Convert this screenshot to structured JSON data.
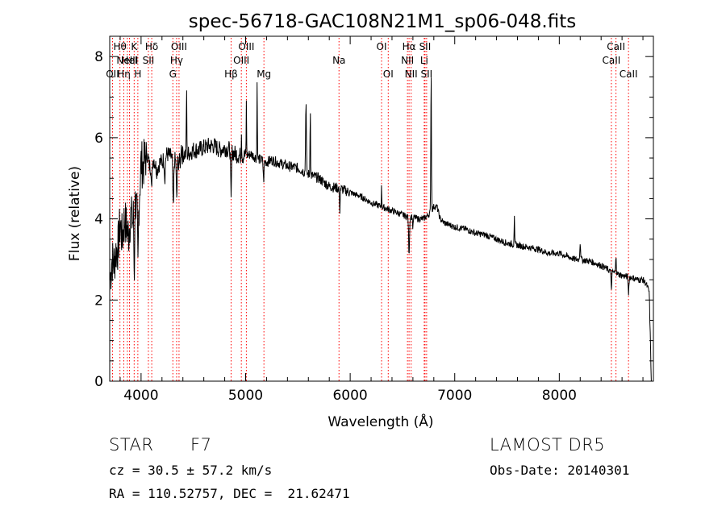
{
  "chart_data": {
    "type": "line",
    "title": "spec-56718-GAC108N21M1_sp06-048.fits",
    "xlabel": "Wavelength (Å)",
    "ylabel": "Flux (relative)",
    "xlim": [
      3700,
      8900
    ],
    "ylim": [
      0,
      8.5
    ],
    "x_ticks": [
      4000,
      5000,
      6000,
      7000,
      8000
    ],
    "y_ticks": [
      0,
      2,
      4,
      6,
      8
    ],
    "grid": false,
    "line_color": "#000000",
    "marker_color": "#ff0000",
    "spectrum_knots": [
      [
        3705,
        2.5
      ],
      [
        3720,
        3.0
      ],
      [
        3740,
        2.9
      ],
      [
        3760,
        3.2
      ],
      [
        3780,
        3.3
      ],
      [
        3800,
        3.9
      ],
      [
        3820,
        3.5
      ],
      [
        3840,
        4.0
      ],
      [
        3860,
        3.8
      ],
      [
        3880,
        3.6
      ],
      [
        3900,
        4.1
      ],
      [
        3920,
        3.9
      ],
      [
        3940,
        4.6
      ],
      [
        3960,
        4.1
      ],
      [
        3980,
        4.4
      ],
      [
        4000,
        5.4
      ],
      [
        4020,
        5.3
      ],
      [
        4040,
        5.5
      ],
      [
        4060,
        5.6
      ],
      [
        4080,
        5.3
      ],
      [
        4100,
        5.3
      ],
      [
        4120,
        5.5
      ],
      [
        4150,
        5.2
      ],
      [
        4180,
        5.4
      ],
      [
        4200,
        5.4
      ],
      [
        4250,
        5.6
      ],
      [
        4300,
        5.5
      ],
      [
        4340,
        5.4
      ],
      [
        4380,
        5.4
      ],
      [
        4400,
        5.6
      ],
      [
        4450,
        5.6
      ],
      [
        4500,
        5.7
      ],
      [
        4550,
        5.7
      ],
      [
        4600,
        5.75
      ],
      [
        4650,
        5.8
      ],
      [
        4700,
        5.8
      ],
      [
        4750,
        5.7
      ],
      [
        4800,
        5.75
      ],
      [
        4850,
        5.7
      ],
      [
        4900,
        5.6
      ],
      [
        4950,
        5.55
      ],
      [
        5000,
        5.55
      ],
      [
        5050,
        5.6
      ],
      [
        5100,
        5.5
      ],
      [
        5150,
        5.45
      ],
      [
        5200,
        5.4
      ],
      [
        5250,
        5.45
      ],
      [
        5300,
        5.4
      ],
      [
        5400,
        5.3
      ],
      [
        5500,
        5.25
      ],
      [
        5600,
        5.1
      ],
      [
        5700,
        5.0
      ],
      [
        5800,
        4.8
      ],
      [
        5900,
        4.75
      ],
      [
        6000,
        4.65
      ],
      [
        6100,
        4.55
      ],
      [
        6200,
        4.4
      ],
      [
        6300,
        4.3
      ],
      [
        6400,
        4.2
      ],
      [
        6500,
        4.1
      ],
      [
        6550,
        4.05
      ],
      [
        6600,
        4.05
      ],
      [
        6650,
        4.0
      ],
      [
        6700,
        4.0
      ],
      [
        6750,
        4.1
      ],
      [
        6800,
        4.3
      ],
      [
        6830,
        4.3
      ],
      [
        6860,
        4.0
      ],
      [
        6900,
        3.9
      ],
      [
        7000,
        3.8
      ],
      [
        7100,
        3.75
      ],
      [
        7200,
        3.65
      ],
      [
        7300,
        3.6
      ],
      [
        7400,
        3.5
      ],
      [
        7500,
        3.4
      ],
      [
        7600,
        3.35
      ],
      [
        7700,
        3.3
      ],
      [
        7800,
        3.25
      ],
      [
        7900,
        3.15
      ],
      [
        8000,
        3.15
      ],
      [
        8100,
        3.05
      ],
      [
        8150,
        3.0
      ],
      [
        8200,
        3.0
      ],
      [
        8300,
        2.95
      ],
      [
        8400,
        2.85
      ],
      [
        8500,
        2.7
      ],
      [
        8600,
        2.6
      ],
      [
        8700,
        2.55
      ],
      [
        8750,
        2.5
      ],
      [
        8800,
        2.5
      ],
      [
        8830,
        2.4
      ],
      [
        8860,
        2.2
      ],
      [
        8880,
        0.0
      ]
    ],
    "spectrum_features": [
      [
        3935,
        -1.8,
        5
      ],
      [
        3970,
        -1.5,
        5
      ],
      [
        4102,
        -0.7,
        4
      ],
      [
        4227,
        -0.5,
        5
      ],
      [
        4308,
        -1.3,
        6
      ],
      [
        4341,
        -1.0,
        5
      ],
      [
        4385,
        0.5,
        4
      ],
      [
        4435,
        1.8,
        3
      ],
      [
        4861,
        -1.3,
        5
      ],
      [
        4960,
        0.7,
        3
      ],
      [
        5007,
        1.3,
        3
      ],
      [
        5110,
        2.0,
        3
      ],
      [
        5172,
        -0.5,
        5
      ],
      [
        5577,
        1.8,
        5
      ],
      [
        5618,
        1.9,
        3
      ],
      [
        5900,
        -0.6,
        4
      ],
      [
        6300,
        0.5,
        3
      ],
      [
        6563,
        -0.9,
        6
      ],
      [
        6600,
        -0.3,
        4
      ],
      [
        6774,
        3.6,
        4
      ],
      [
        7570,
        0.8,
        3
      ],
      [
        8200,
        0.4,
        6
      ],
      [
        8498,
        -0.4,
        5
      ],
      [
        8542,
        0.5,
        4
      ],
      [
        8662,
        -0.4,
        5
      ]
    ],
    "spectral_lines": [
      {
        "wave": 3727,
        "label": "OII",
        "row": 3
      },
      {
        "wave": 3798,
        "label": "Hθ",
        "row": 1
      },
      {
        "wave": 3835,
        "label": "Hη",
        "row": 3
      },
      {
        "wave": 3869,
        "label": "NeIII",
        "row": 2
      },
      {
        "wave": 3889,
        "label": "HeI",
        "row": 2
      },
      {
        "wave": 3934,
        "label": "K",
        "row": 1
      },
      {
        "wave": 3969,
        "label": "H",
        "row": 3
      },
      {
        "wave": 4070,
        "label": "SII",
        "row": 2
      },
      {
        "wave": 4102,
        "label": "Hδ",
        "row": 1
      },
      {
        "wave": 4304,
        "label": "G",
        "row": 3
      },
      {
        "wave": 4340,
        "label": "Hγ",
        "row": 2
      },
      {
        "wave": 4363,
        "label": "OIII",
        "row": 1
      },
      {
        "wave": 4861,
        "label": "Hβ",
        "row": 3
      },
      {
        "wave": 4959,
        "label": "OIII",
        "row": 2
      },
      {
        "wave": 5007,
        "label": "OIII",
        "row": 1
      },
      {
        "wave": 5175,
        "label": "Mg",
        "row": 3
      },
      {
        "wave": 5893,
        "label": "Na",
        "row": 2
      },
      {
        "wave": 6300,
        "label": "OI",
        "row": 1
      },
      {
        "wave": 6364,
        "label": "OI",
        "row": 3
      },
      {
        "wave": 6548,
        "label": "NII",
        "row": 2
      },
      {
        "wave": 6563,
        "label": "Hα",
        "row": 1
      },
      {
        "wave": 6583,
        "label": "NII",
        "row": 3
      },
      {
        "wave": 6708,
        "label": "Li",
        "row": 2
      },
      {
        "wave": 6716,
        "label": "SII",
        "row": 1
      },
      {
        "wave": 6731,
        "label": "SII",
        "row": 3
      },
      {
        "wave": 8498,
        "label": "CaII",
        "row": 2
      },
      {
        "wave": 8542,
        "label": "CaII",
        "row": 1
      },
      {
        "wave": 8662,
        "label": "CaII",
        "row": 3
      }
    ]
  },
  "info": {
    "object_class": "STAR",
    "subclass": "F7",
    "survey": "LAMOST DR5",
    "redshift_line": "cz = 30.5 ± 57.2 km/s",
    "obs_date_line": "Obs-Date: 20140301",
    "coords_line": "RA = 110.52757, DEC =  21.62471"
  }
}
